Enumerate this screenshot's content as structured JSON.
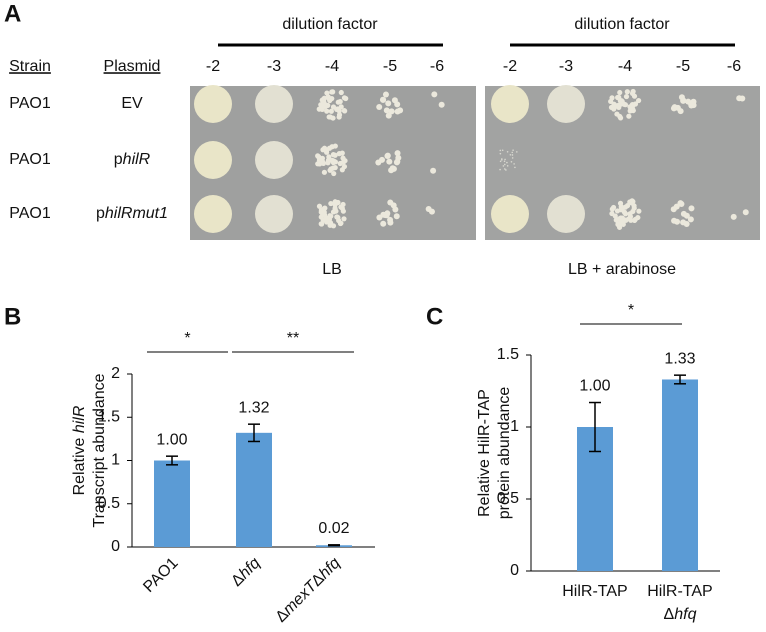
{
  "panel_a": {
    "label": "A",
    "dilution_title": "dilution factor",
    "dilutions": [
      "-2",
      "-3",
      "-4",
      "-5",
      "-6"
    ],
    "strain_header": "Strain",
    "plasmid_header": "Plasmid",
    "rows": [
      {
        "strain": "PAO1",
        "plasmid": [
          "EV"
        ]
      },
      {
        "strain": "PAO1",
        "plasmid": [
          "p",
          "hilR"
        ]
      },
      {
        "strain": "PAO1",
        "plasmid": [
          "p",
          "hilRmut1"
        ]
      }
    ],
    "plates": [
      "LB",
      "LB + arabinose"
    ]
  },
  "chart_data": [
    {
      "type": "bar",
      "label": "B",
      "ylabel": [
        [
          "Relative ",
          "hilR"
        ],
        [
          "Transcript abundance"
        ]
      ],
      "categories": [
        [
          [
            "PAO1"
          ]
        ],
        [
          [
            "Δ",
            "hfq"
          ]
        ],
        [
          [
            "Δ",
            "mexT",
            "Δ",
            "hfq"
          ]
        ]
      ],
      "values": [
        1.0,
        1.32,
        0.02
      ],
      "value_labels": [
        "1.00",
        "1.32",
        "0.02"
      ],
      "errors": [
        0.05,
        0.1,
        0.005
      ],
      "color": "#5b9bd5",
      "ylim": [
        0,
        2
      ],
      "yticks": [
        0,
        0.5,
        1,
        1.5,
        2
      ],
      "significance": [
        "*",
        "**"
      ]
    },
    {
      "type": "bar",
      "label": "C",
      "ylabel": [
        [
          "Relative HilR-TAP"
        ],
        [
          "protein abundance"
        ]
      ],
      "categories": [
        [
          [
            "HilR-TAP"
          ]
        ],
        [
          [
            "HilR-TAP"
          ],
          [
            "Δ",
            "hfq"
          ]
        ]
      ],
      "values": [
        1.0,
        1.33
      ],
      "value_labels": [
        "1.00",
        "1.33"
      ],
      "errors": [
        0.17,
        0.03
      ],
      "color": "#5b9bd5",
      "ylim": [
        0,
        1.5
      ],
      "yticks": [
        0,
        0.5,
        1,
        1.5
      ],
      "significance": [
        "*"
      ]
    }
  ]
}
